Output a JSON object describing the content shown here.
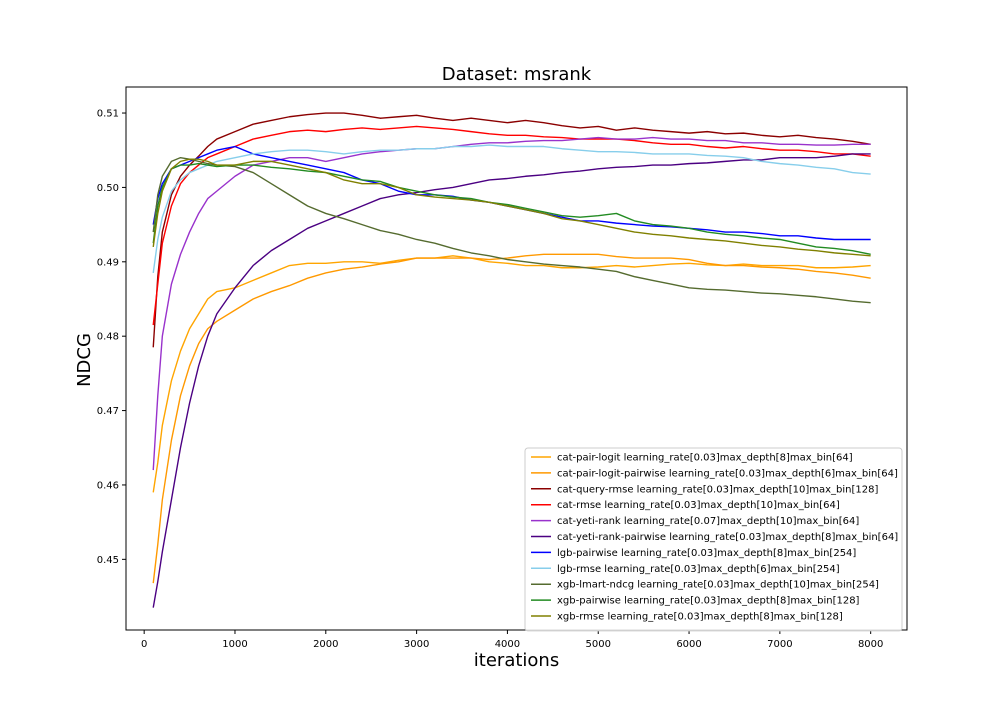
{
  "chart_data": {
    "type": "line",
    "title": "Dataset: msrank",
    "xlabel": "iterations",
    "ylabel": "NDCG",
    "xlim": [
      -200,
      8400
    ],
    "ylim": [
      0.4405,
      0.5135
    ],
    "xticks": [
      0,
      1000,
      2000,
      3000,
      4000,
      5000,
      6000,
      7000,
      8000
    ],
    "yticks": [
      0.45,
      0.46,
      0.47,
      0.48,
      0.49,
      0.5,
      0.51
    ],
    "ytick_labels": [
      "0.45",
      "0.46",
      "0.47",
      "0.48",
      "0.49",
      "0.50",
      "0.51"
    ],
    "grid": false,
    "legend_position": "lower-right",
    "x": [
      100,
      150,
      200,
      300,
      400,
      500,
      600,
      700,
      800,
      1000,
      1200,
      1400,
      1600,
      1800,
      2000,
      2200,
      2400,
      2600,
      2800,
      3000,
      3200,
      3400,
      3600,
      3800,
      4000,
      4200,
      4400,
      4600,
      4800,
      5000,
      5200,
      5400,
      5600,
      5800,
      6000,
      6200,
      6400,
      6600,
      6800,
      7000,
      7200,
      7400,
      7600,
      7800,
      8000
    ],
    "series": [
      {
        "name": "cat-pair-logit learning_rate[0.03]max_depth[8]max_bin[64]",
        "color": "#ffa500",
        "values": [
          0.459,
          0.463,
          0.468,
          0.474,
          0.478,
          0.481,
          0.483,
          0.485,
          0.486,
          0.4865,
          0.4875,
          0.4885,
          0.4895,
          0.4898,
          0.4898,
          0.49,
          0.49,
          0.4898,
          0.4902,
          0.4905,
          0.4905,
          0.4908,
          0.4905,
          0.49,
          0.4898,
          0.4895,
          0.4895,
          0.4892,
          0.4892,
          0.4893,
          0.4895,
          0.4893,
          0.4895,
          0.4897,
          0.4898,
          0.4896,
          0.4895,
          0.4897,
          0.4895,
          0.4895,
          0.4895,
          0.4892,
          0.4892,
          0.4893,
          0.4895
        ]
      },
      {
        "name": "cat-pair-logit-pairwise learning_rate[0.03]max_depth[6]max_bin[64]",
        "color": "#ff9900",
        "values": [
          0.4468,
          0.452,
          0.458,
          0.466,
          0.472,
          0.476,
          0.479,
          0.481,
          0.482,
          0.4835,
          0.485,
          0.486,
          0.4868,
          0.4878,
          0.4885,
          0.489,
          0.4893,
          0.4897,
          0.49,
          0.4905,
          0.4905,
          0.4905,
          0.4905,
          0.4903,
          0.4905,
          0.4908,
          0.491,
          0.491,
          0.491,
          0.491,
          0.4907,
          0.4905,
          0.4905,
          0.4905,
          0.4903,
          0.4898,
          0.4895,
          0.4895,
          0.4893,
          0.4892,
          0.489,
          0.4887,
          0.4885,
          0.4882,
          0.4878
        ]
      },
      {
        "name": "cat-query-rmse learning_rate[0.03]max_depth[10]max_bin[128]",
        "color": "#8b0000",
        "values": [
          0.4785,
          0.488,
          0.494,
          0.499,
          0.5015,
          0.503,
          0.5042,
          0.5055,
          0.5065,
          0.5075,
          0.5085,
          0.509,
          0.5095,
          0.5098,
          0.51,
          0.51,
          0.5097,
          0.5093,
          0.5095,
          0.5097,
          0.5093,
          0.509,
          0.5093,
          0.509,
          0.5087,
          0.509,
          0.5087,
          0.5083,
          0.508,
          0.5082,
          0.5077,
          0.508,
          0.5077,
          0.5075,
          0.5073,
          0.5075,
          0.5072,
          0.5073,
          0.507,
          0.5068,
          0.507,
          0.5067,
          0.5065,
          0.5062,
          0.5058
        ]
      },
      {
        "name": "cat-rmse learning_rate[0.03]max_depth[10]max_bin[64]",
        "color": "#ff0000",
        "values": [
          0.4815,
          0.487,
          0.4925,
          0.4975,
          0.5005,
          0.502,
          0.503,
          0.504,
          0.5045,
          0.5055,
          0.5065,
          0.507,
          0.5075,
          0.5077,
          0.5075,
          0.5078,
          0.508,
          0.5078,
          0.508,
          0.5082,
          0.508,
          0.5078,
          0.5075,
          0.5072,
          0.507,
          0.507,
          0.5068,
          0.5067,
          0.5065,
          0.5065,
          0.5065,
          0.5063,
          0.506,
          0.5058,
          0.5058,
          0.5055,
          0.5053,
          0.5055,
          0.5052,
          0.505,
          0.505,
          0.5048,
          0.5045,
          0.5045,
          0.5042
        ]
      },
      {
        "name": "cat-yeti-rank learning_rate[0.07]max_depth[10]max_bin[64]",
        "color": "#9932cc",
        "values": [
          0.462,
          0.472,
          0.48,
          0.487,
          0.491,
          0.494,
          0.4965,
          0.4985,
          0.4995,
          0.5015,
          0.503,
          0.5035,
          0.504,
          0.504,
          0.5035,
          0.504,
          0.5045,
          0.5048,
          0.505,
          0.5052,
          0.5052,
          0.5055,
          0.5058,
          0.506,
          0.506,
          0.5062,
          0.5063,
          0.5063,
          0.5065,
          0.5067,
          0.5065,
          0.5065,
          0.5067,
          0.5065,
          0.5065,
          0.5063,
          0.5063,
          0.506,
          0.506,
          0.5058,
          0.5058,
          0.5057,
          0.5057,
          0.5058,
          0.5058
        ]
      },
      {
        "name": "cat-yeti-rank-pairwise learning_rate[0.03]max_depth[8]max_bin[64]",
        "color": "#4b0082",
        "values": [
          0.4435,
          0.447,
          0.451,
          0.458,
          0.465,
          0.471,
          0.476,
          0.48,
          0.483,
          0.4865,
          0.4895,
          0.4915,
          0.493,
          0.4945,
          0.4955,
          0.4965,
          0.4975,
          0.4985,
          0.499,
          0.4993,
          0.4997,
          0.5,
          0.5005,
          0.501,
          0.5012,
          0.5015,
          0.5017,
          0.502,
          0.5022,
          0.5025,
          0.5027,
          0.5028,
          0.503,
          0.503,
          0.5032,
          0.5033,
          0.5035,
          0.5037,
          0.5037,
          0.504,
          0.504,
          0.504,
          0.5042,
          0.5045,
          0.5045
        ]
      },
      {
        "name": "lgb-pairwise learning_rate[0.03]max_depth[8]max_bin[254]",
        "color": "#0000ff",
        "values": [
          0.495,
          0.4985,
          0.5005,
          0.5025,
          0.503,
          0.5035,
          0.504,
          0.5045,
          0.505,
          0.5055,
          0.5045,
          0.504,
          0.5035,
          0.503,
          0.5025,
          0.502,
          0.501,
          0.5005,
          0.4995,
          0.499,
          0.499,
          0.4988,
          0.4983,
          0.498,
          0.4975,
          0.497,
          0.4965,
          0.496,
          0.4955,
          0.4955,
          0.4952,
          0.495,
          0.4948,
          0.4947,
          0.4945,
          0.4943,
          0.494,
          0.494,
          0.4938,
          0.4935,
          0.4935,
          0.4932,
          0.493,
          0.493,
          0.493
        ]
      },
      {
        "name": "lgb-rmse learning_rate[0.03]max_depth[6]max_bin[254]",
        "color": "#87ceeb",
        "values": [
          0.4885,
          0.493,
          0.496,
          0.4995,
          0.501,
          0.502,
          0.5025,
          0.503,
          0.5035,
          0.504,
          0.5045,
          0.5048,
          0.505,
          0.505,
          0.5048,
          0.5045,
          0.5048,
          0.505,
          0.505,
          0.5052,
          0.5052,
          0.5055,
          0.5055,
          0.5057,
          0.5055,
          0.5055,
          0.5055,
          0.5052,
          0.505,
          0.5048,
          0.5048,
          0.5047,
          0.5045,
          0.5045,
          0.5045,
          0.5043,
          0.5042,
          0.504,
          0.5035,
          0.5032,
          0.503,
          0.5027,
          0.5025,
          0.502,
          0.5018
        ]
      },
      {
        "name": "xgb-lmart-ndcg learning_rate[0.03]max_depth[10]max_bin[254]",
        "color": "#556b2f",
        "values": [
          0.494,
          0.499,
          0.5015,
          0.5035,
          0.504,
          0.5038,
          0.5035,
          0.5032,
          0.503,
          0.5028,
          0.502,
          0.5005,
          0.499,
          0.4975,
          0.4965,
          0.4958,
          0.495,
          0.4942,
          0.4937,
          0.493,
          0.4925,
          0.4918,
          0.4912,
          0.4908,
          0.4903,
          0.49,
          0.4897,
          0.4895,
          0.4893,
          0.489,
          0.4887,
          0.488,
          0.4875,
          0.487,
          0.4865,
          0.4863,
          0.4862,
          0.486,
          0.4858,
          0.4857,
          0.4855,
          0.4853,
          0.485,
          0.4847,
          0.4845
        ]
      },
      {
        "name": "xgb-pairwise learning_rate[0.03]max_depth[8]max_bin[128]",
        "color": "#228b22",
        "values": [
          0.4925,
          0.4975,
          0.5,
          0.5025,
          0.503,
          0.503,
          0.5032,
          0.503,
          0.5028,
          0.503,
          0.503,
          0.5027,
          0.5025,
          0.5022,
          0.502,
          0.5015,
          0.501,
          0.5008,
          0.5,
          0.4995,
          0.499,
          0.4987,
          0.4985,
          0.498,
          0.4977,
          0.4972,
          0.4967,
          0.4962,
          0.496,
          0.4962,
          0.4965,
          0.4955,
          0.495,
          0.4948,
          0.4945,
          0.494,
          0.4937,
          0.4935,
          0.4932,
          0.493,
          0.4925,
          0.492,
          0.4918,
          0.4915,
          0.491
        ]
      },
      {
        "name": "xgb-rmse learning_rate[0.03]max_depth[8]max_bin[128]",
        "color": "#808000",
        "values": [
          0.492,
          0.4965,
          0.4995,
          0.5025,
          0.5035,
          0.5038,
          0.5038,
          0.5035,
          0.503,
          0.503,
          0.5035,
          0.5035,
          0.503,
          0.5025,
          0.502,
          0.501,
          0.5005,
          0.5005,
          0.5,
          0.499,
          0.4987,
          0.4985,
          0.4983,
          0.498,
          0.4975,
          0.497,
          0.4965,
          0.4958,
          0.4955,
          0.495,
          0.4945,
          0.494,
          0.4937,
          0.4935,
          0.4932,
          0.493,
          0.4928,
          0.4925,
          0.4922,
          0.492,
          0.4917,
          0.4915,
          0.4912,
          0.491,
          0.4908
        ]
      }
    ]
  }
}
